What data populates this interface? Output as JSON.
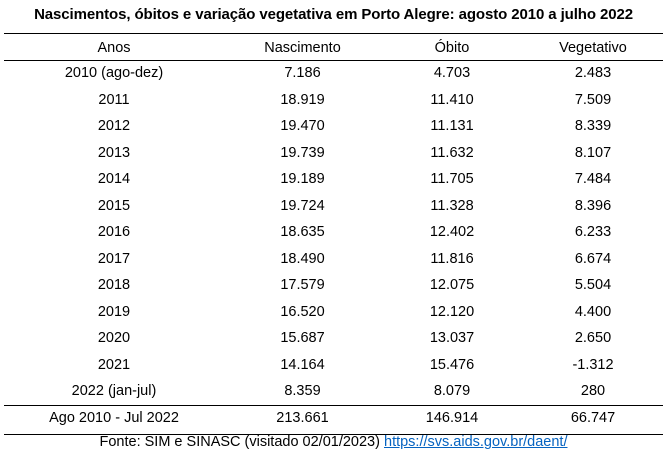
{
  "title": "Nascimentos, óbitos e variação vegetativa em Porto Alegre: agosto 2010 a julho 2022",
  "table": {
    "headers": [
      "Anos",
      "Nascimento",
      "Óbito",
      "Vegetativo"
    ],
    "rows": [
      [
        "2010 (ago-dez)",
        "7.186",
        "4.703",
        "2.483"
      ],
      [
        "2011",
        "18.919",
        "11.410",
        "7.509"
      ],
      [
        "2012",
        "19.470",
        "11.131",
        "8.339"
      ],
      [
        "2013",
        "19.739",
        "11.632",
        "8.107"
      ],
      [
        "2014",
        "19.189",
        "11.705",
        "7.484"
      ],
      [
        "2015",
        "19.724",
        "11.328",
        "8.396"
      ],
      [
        "2016",
        "18.635",
        "12.402",
        "6.233"
      ],
      [
        "2017",
        "18.490",
        "11.816",
        "6.674"
      ],
      [
        "2018",
        "17.579",
        "12.075",
        "5.504"
      ],
      [
        "2019",
        "16.520",
        "12.120",
        "4.400"
      ],
      [
        "2020",
        "15.687",
        "13.037",
        "2.650"
      ],
      [
        "2021",
        "14.164",
        "15.476",
        "-1.312"
      ],
      [
        "2022 (jan-jul)",
        "8.359",
        "8.079",
        "280"
      ]
    ],
    "total": [
      "Ago 2010 - Jul 2022",
      "213.661",
      "146.914",
      "66.747"
    ]
  },
  "source": {
    "prefix": "Fonte: SIM e SINASC (visitado 02/01/2023)",
    "link_text": "https://svs.aids.gov.br/daent/"
  },
  "colors": {
    "text": "#000000",
    "link": "#0563c1",
    "rules": "#000000",
    "background": "#ffffff"
  }
}
